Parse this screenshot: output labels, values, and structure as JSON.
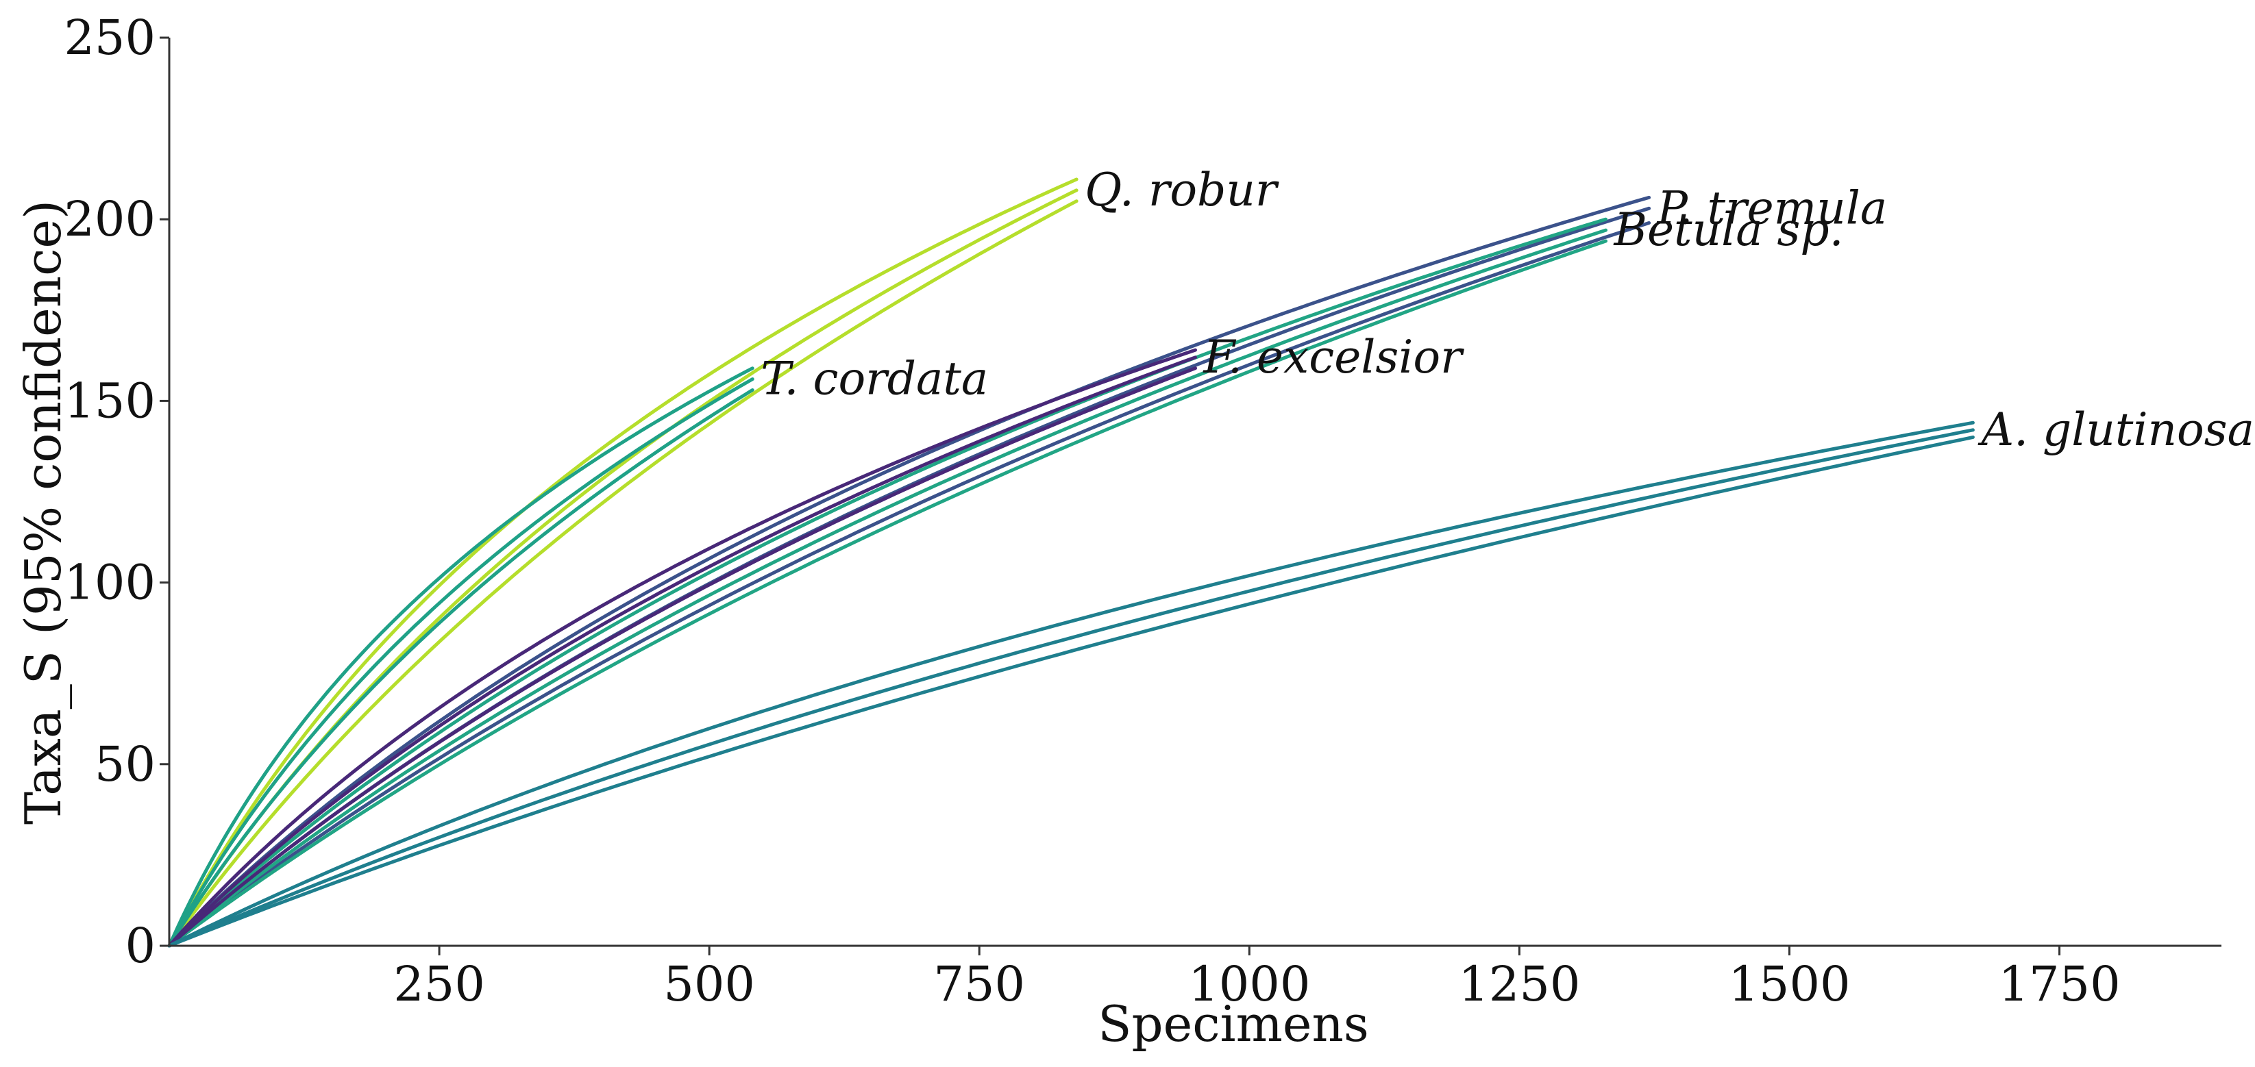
{
  "chart_data": {
    "type": "line",
    "title": "",
    "xlabel": "Specimens",
    "ylabel": "Taxa_S (95% confidence)",
    "xlim": [
      0,
      1900
    ],
    "ylim": [
      0,
      250
    ],
    "xticks": [
      250,
      500,
      750,
      1000,
      1250,
      1500,
      1750
    ],
    "xtick_labels": [
      "250",
      "500",
      "750",
      "1000",
      "1250",
      "1500",
      "1750"
    ],
    "yticks": [
      0,
      50,
      100,
      150,
      200,
      250
    ],
    "ytick_labels": [
      "0",
      "50",
      "100",
      "150",
      "200",
      "250"
    ],
    "grid": false,
    "legend": "none (inline labels at curve ends)",
    "series": [
      {
        "name": "Q. robur",
        "color": "#b5de2b",
        "n_specimens": 840,
        "curves": [
          {
            "band": "upper",
            "end_taxa": 211,
            "shape": 0.3
          },
          {
            "band": "mean",
            "end_taxa": 208,
            "shape": 0.45
          },
          {
            "band": "lower",
            "end_taxa": 205,
            "shape": 0.62
          }
        ]
      },
      {
        "name": "T. cordata",
        "color": "#1fa187",
        "n_specimens": 540,
        "curves": [
          {
            "band": "upper",
            "end_taxa": 159,
            "shape": 0.3
          },
          {
            "band": "mean",
            "end_taxa": 156,
            "shape": 0.45
          },
          {
            "band": "lower",
            "end_taxa": 153,
            "shape": 0.62
          }
        ]
      },
      {
        "name": "P. tremula",
        "color": "#3b528b",
        "n_specimens": 1370,
        "curves": [
          {
            "band": "upper",
            "end_taxa": 206,
            "shape": 0.4
          },
          {
            "band": "mean",
            "end_taxa": 203,
            "shape": 0.55
          },
          {
            "band": "lower",
            "end_taxa": 199,
            "shape": 0.72
          }
        ]
      },
      {
        "name": "Betula sp.",
        "color": "#21a585",
        "n_specimens": 1330,
        "curves": [
          {
            "band": "upper",
            "end_taxa": 200,
            "shape": 0.48
          },
          {
            "band": "mean",
            "end_taxa": 197,
            "shape": 0.65
          },
          {
            "band": "lower",
            "end_taxa": 194,
            "shape": 0.85
          }
        ]
      },
      {
        "name": "F. excelsior",
        "color": "#482878",
        "n_specimens": 950,
        "curves": [
          {
            "band": "upper",
            "end_taxa": 164,
            "shape": 0.42
          },
          {
            "band": "mean",
            "end_taxa": 162,
            "shape": 0.58
          },
          {
            "band": "lower",
            "end_taxa": 159,
            "shape": 0.78
          }
        ]
      },
      {
        "name": "A. glutinosa",
        "color": "#1f7f8e",
        "n_specimens": 1670,
        "curves": [
          {
            "band": "upper",
            "end_taxa": 144,
            "shape": 0.58
          },
          {
            "band": "mean",
            "end_taxa": 142,
            "shape": 0.82
          },
          {
            "band": "lower",
            "end_taxa": 140,
            "shape": 1.1
          }
        ]
      }
    ]
  }
}
